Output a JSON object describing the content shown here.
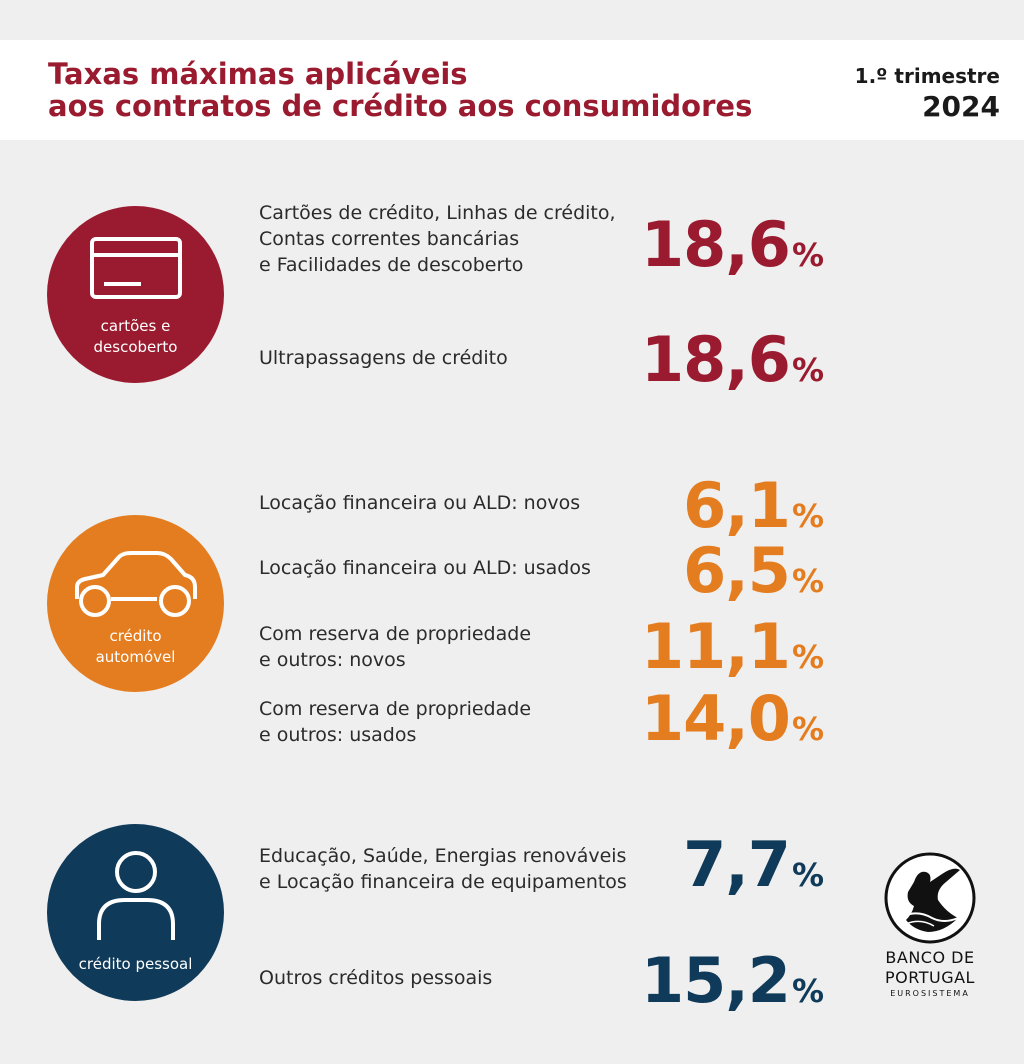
{
  "header": {
    "title_line1": "Taxas máximas aplicáveis",
    "title_line2": "aos contratos de crédito aos consumidores",
    "period_label": "1.º trimestre",
    "year": "2024"
  },
  "colors": {
    "cards": "#9a1b2f",
    "auto": "#e47d20",
    "personal": "#0f3a59"
  },
  "groups": [
    {
      "label": "cartões e\ndescoberto",
      "icon": "credit-card-icon",
      "rows": [
        {
          "label": "Cartões de crédito, Linhas de crédito,\nContas correntes bancárias\ne Facilidades de descoberto",
          "value": "18,6",
          "unit": "%"
        },
        {
          "label": "Ultrapassagens de crédito",
          "value": "18,6",
          "unit": "%"
        }
      ]
    },
    {
      "label": "crédito\nautomóvel",
      "icon": "car-icon",
      "rows": [
        {
          "label": "Locação financeira ou ALD: novos",
          "value": "6,1",
          "unit": "%"
        },
        {
          "label": "Locação financeira ou ALD: usados",
          "value": "6,5",
          "unit": "%"
        },
        {
          "label": "Com reserva de propriedade\ne outros: novos",
          "value": "11,1",
          "unit": "%"
        },
        {
          "label": "Com reserva de propriedade\ne outros: usados",
          "value": "14,0",
          "unit": "%"
        }
      ]
    },
    {
      "label": "crédito pessoal",
      "icon": "person-icon",
      "rows": [
        {
          "label": "Educação, Saúde, Energias renováveis\ne Locação financeira de equipamentos",
          "value": "7,7",
          "unit": "%"
        },
        {
          "label": "Outros créditos pessoais",
          "value": "15,2",
          "unit": "%"
        }
      ]
    }
  ],
  "logo": {
    "line1": "BANCO DE",
    "line2": "PORTUGAL",
    "line3": "EUROSISTEMA",
    "icon": "banco-de-portugal-seal-icon"
  }
}
